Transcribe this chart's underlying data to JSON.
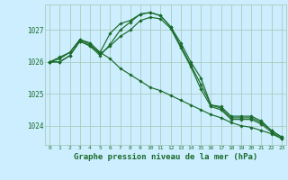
{
  "bg_color": "#cceeff",
  "grid_color": "#aaccbb",
  "line_color": "#1a6b2a",
  "marker_color": "#1a6b2a",
  "xlabel": "Graphe pression niveau de la mer (hPa)",
  "xlabel_fontsize": 6.5,
  "yticks": [
    1024,
    1025,
    1026,
    1027
  ],
  "xticks": [
    0,
    1,
    2,
    3,
    4,
    5,
    6,
    7,
    8,
    9,
    10,
    11,
    12,
    13,
    14,
    15,
    16,
    17,
    18,
    19,
    20,
    21,
    22,
    23
  ],
  "xlim": [
    -0.5,
    23.5
  ],
  "ylim": [
    1023.4,
    1027.8
  ],
  "series": [
    [
      1026.0,
      1026.0,
      1026.2,
      1026.65,
      1026.5,
      1026.3,
      1026.9,
      1027.2,
      1027.3,
      1027.5,
      1027.55,
      1027.45,
      1027.1,
      1026.6,
      1026.0,
      1025.5,
      1024.65,
      1024.6,
      1024.3,
      1024.3,
      1024.3,
      1024.15,
      1023.85,
      1023.65
    ],
    [
      1026.0,
      1026.0,
      1026.2,
      1026.65,
      1026.5,
      1026.2,
      1026.55,
      1027.0,
      1027.25,
      1027.5,
      1027.55,
      1027.45,
      1027.1,
      1026.5,
      1025.9,
      1025.3,
      1024.65,
      1024.55,
      1024.25,
      1024.25,
      1024.25,
      1024.1,
      1023.85,
      1023.65
    ],
    [
      1026.0,
      1026.1,
      1026.3,
      1026.7,
      1026.55,
      1026.25,
      1026.5,
      1026.8,
      1027.0,
      1027.3,
      1027.4,
      1027.35,
      1027.05,
      1026.45,
      1025.85,
      1025.15,
      1024.6,
      1024.5,
      1024.2,
      1024.2,
      1024.2,
      1024.05,
      1023.8,
      1023.6
    ],
    [
      1026.0,
      1026.15,
      1026.3,
      1026.7,
      1026.6,
      1026.3,
      1026.1,
      1025.8,
      1025.6,
      1025.4,
      1025.2,
      1025.1,
      1024.95,
      1024.8,
      1024.65,
      1024.5,
      1024.35,
      1024.25,
      1024.1,
      1024.0,
      1023.95,
      1023.85,
      1023.75,
      1023.6
    ]
  ]
}
